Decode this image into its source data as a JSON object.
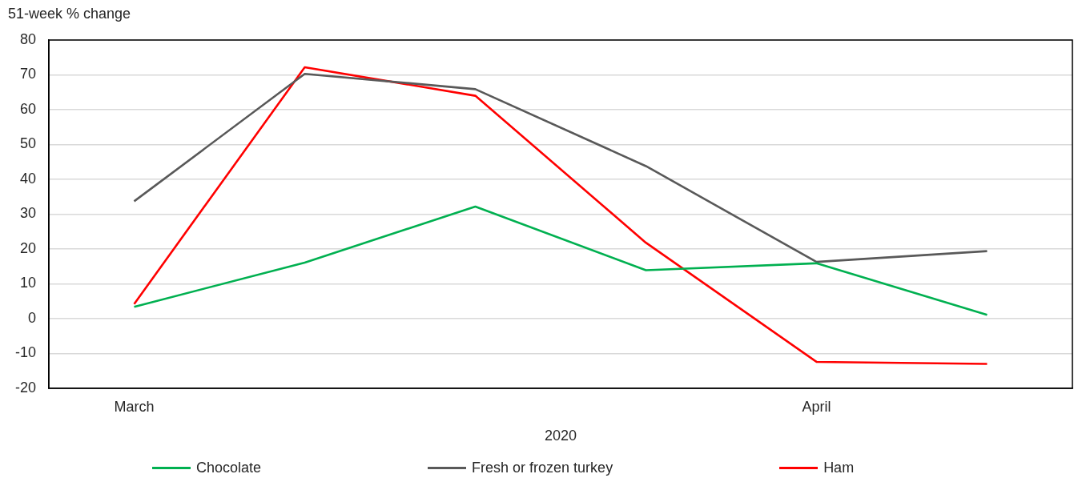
{
  "chart_data": {
    "type": "line",
    "ylabel": "51-week % change",
    "xlabel": "2020",
    "categories": [
      "March",
      null,
      null,
      null,
      "April",
      null
    ],
    "series": [
      {
        "name": "Chocolate",
        "color": "#00b050",
        "values": [
          3.4,
          16.1,
          32.2,
          13.9,
          15.9,
          1.1
        ]
      },
      {
        "name": "Fresh or frozen turkey",
        "color": "#595959",
        "values": [
          33.7,
          70.3,
          65.9,
          43.8,
          16.3,
          19.4
        ]
      },
      {
        "name": "Ham",
        "color": "#ff0000",
        "values": [
          4.2,
          72.2,
          64.0,
          21.8,
          -12.4,
          -13.0
        ]
      }
    ],
    "ylim": [
      -20,
      80
    ],
    "yticks": [
      -20,
      -10,
      0,
      10,
      20,
      30,
      40,
      50,
      60,
      70,
      80
    ],
    "grid": "y",
    "legend": "bottom",
    "marker": "none"
  }
}
